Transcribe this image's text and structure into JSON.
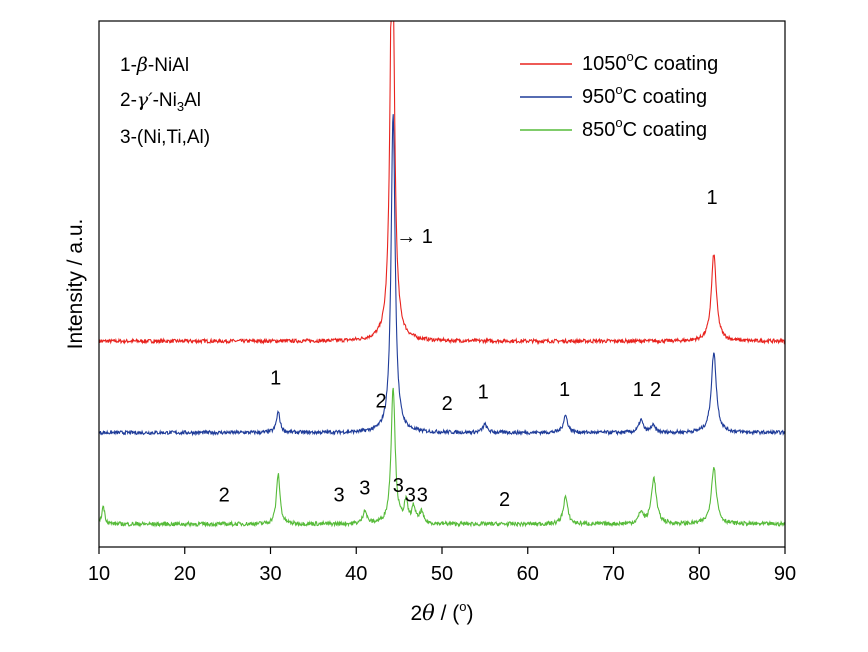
{
  "chart_data": {
    "type": "line",
    "title": "",
    "xlabel_parts": [
      "2",
      "θ",
      " / (",
      "o",
      ")"
    ],
    "ylabel": "Intensity / a.u.",
    "xlim": [
      10,
      90
    ],
    "xticks": [
      10,
      20,
      30,
      40,
      50,
      60,
      70,
      80,
      90
    ],
    "grid": false,
    "legend_position": "top-right",
    "phase_key": [
      {
        "prefix": "1-",
        "symbol": "β",
        "rest": "-NiAl"
      },
      {
        "prefix": "2-",
        "symbol": "γ′",
        "rest": "-Ni",
        "sub": "3",
        "rest2": "Al"
      },
      {
        "prefix": "3-",
        "symbol": "",
        "rest": "(Ni,Ti,Al)"
      }
    ],
    "series": [
      {
        "name": "1050°C coating",
        "legend_parts": [
          "1050",
          "o",
          "C coating"
        ],
        "color": "#e8231e",
        "baseline": 0.0,
        "noise": 0.08,
        "peaks": [
          {
            "x": 44.2,
            "h": 20.0,
            "w": 0.28
          },
          {
            "x": 81.7,
            "h": 3.8,
            "w": 0.35
          }
        ]
      },
      {
        "name": "950°C coating",
        "legend_parts": [
          "950",
          "o",
          "C coating"
        ],
        "color": "#1f3c99",
        "baseline": 0.0,
        "noise": 0.08,
        "peaks": [
          {
            "x": 30.9,
            "h": 0.9,
            "w": 0.25
          },
          {
            "x": 44.3,
            "h": 14.0,
            "w": 0.28
          },
          {
            "x": 55.0,
            "h": 0.35,
            "w": 0.3
          },
          {
            "x": 64.4,
            "h": 0.75,
            "w": 0.3
          },
          {
            "x": 73.2,
            "h": 0.55,
            "w": 0.3
          },
          {
            "x": 74.6,
            "h": 0.3,
            "w": 0.3
          },
          {
            "x": 81.7,
            "h": 3.5,
            "w": 0.35
          }
        ]
      },
      {
        "name": "850°C coating",
        "legend_parts": [
          "850",
          "o",
          "C coating"
        ],
        "color": "#57bb3a",
        "baseline": 0.0,
        "noise": 0.09,
        "peaks": [
          {
            "x": 10.5,
            "h": 0.8,
            "w": 0.2
          },
          {
            "x": 30.9,
            "h": 2.2,
            "w": 0.25
          },
          {
            "x": 41.0,
            "h": 0.6,
            "w": 0.25
          },
          {
            "x": 44.3,
            "h": 6.0,
            "w": 0.28
          },
          {
            "x": 45.8,
            "h": 0.9,
            "w": 0.25
          },
          {
            "x": 46.7,
            "h": 0.7,
            "w": 0.25
          },
          {
            "x": 47.6,
            "h": 0.5,
            "w": 0.25
          },
          {
            "x": 64.4,
            "h": 1.2,
            "w": 0.3
          },
          {
            "x": 73.2,
            "h": 0.5,
            "w": 0.3
          },
          {
            "x": 74.7,
            "h": 2.0,
            "w": 0.35
          },
          {
            "x": 81.7,
            "h": 2.5,
            "w": 0.35
          }
        ]
      }
    ],
    "annotations": [
      {
        "text": "→ 1",
        "x": 46.8,
        "ylevel": 12.3
      },
      {
        "text": "1",
        "x": 81.5,
        "ylevel": 14.0
      },
      {
        "text": "1",
        "x": 30.6,
        "ylevel": 6.1
      },
      {
        "text": "2",
        "x": 42.9,
        "ylevel": 5.1
      },
      {
        "text": "2",
        "x": 50.6,
        "ylevel": 5.0
      },
      {
        "text": "1",
        "x": 54.8,
        "ylevel": 5.5
      },
      {
        "text": "1",
        "x": 64.3,
        "ylevel": 5.6
      },
      {
        "text": "1",
        "x": 72.9,
        "ylevel": 5.6
      },
      {
        "text": "2",
        "x": 74.9,
        "ylevel": 5.6
      },
      {
        "text": "2",
        "x": 24.6,
        "ylevel": 1.0
      },
      {
        "text": "3",
        "x": 38.0,
        "ylevel": 1.0
      },
      {
        "text": "3",
        "x": 41.0,
        "ylevel": 1.3
      },
      {
        "text": "3",
        "x": 44.9,
        "ylevel": 1.4
      },
      {
        "text": "3",
        "x": 46.3,
        "ylevel": 1.0
      },
      {
        "text": "3",
        "x": 47.7,
        "ylevel": 1.0
      },
      {
        "text": "2",
        "x": 57.3,
        "ylevel": 0.8
      }
    ],
    "ylevel_range": [
      -1.0,
      22.0
    ],
    "series_offsets": [
      8.0,
      4.0,
      0.0
    ]
  }
}
